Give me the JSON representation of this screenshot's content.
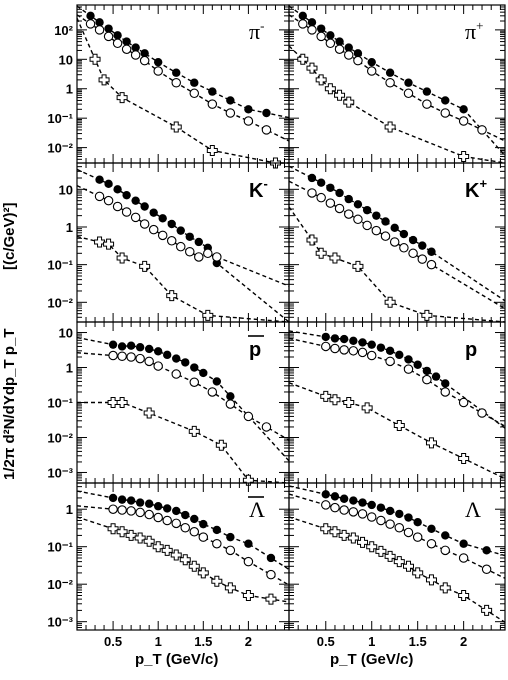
{
  "chart_data": {
    "type": "scatter",
    "xlabel": "p_T (GeV/c)",
    "ylabel_factor": "1/2π d²N/dYdp_T p_T",
    "ylabel_units": "[(c/GeV)²]",
    "xlim": [
      0.1,
      2.45
    ],
    "xticks": [
      "0.5",
      "1",
      "1.5",
      "2"
    ],
    "yscale": "log",
    "series_styles": [
      "filled circle",
      "open circle",
      "open cross"
    ],
    "panels": [
      {
        "particle": "π-",
        "label": "π",
        "sup": "-",
        "overline": false,
        "font": "serif",
        "ylim": [
          0.003,
          700
        ],
        "yticks": [
          "10²",
          "10",
          "1",
          "10⁻¹",
          "10⁻²"
        ],
        "series": [
          {
            "marker": "filled",
            "x": [
              0.25,
              0.35,
              0.45,
              0.55,
              0.65,
              0.75,
              0.85,
              1.0,
              1.2,
              1.4,
              1.6,
              1.8,
              2.0,
              2.2
            ],
            "y": [
              300,
              180,
              110,
              65,
              40,
              25,
              16,
              8,
              3.5,
              1.6,
              0.8,
              0.4,
              0.2,
              0.15
            ]
          },
          {
            "marker": "open",
            "x": [
              0.25,
              0.35,
              0.45,
              0.55,
              0.65,
              0.75,
              0.85,
              1.0,
              1.2,
              1.4,
              1.6,
              1.8,
              2.0,
              2.2
            ],
            "y": [
              160,
              100,
              60,
              35,
              22,
              14,
              9,
              4,
              1.6,
              0.7,
              0.3,
              0.15,
              0.08,
              0.04
            ]
          },
          {
            "marker": "cross",
            "x": [
              0.3,
              0.4,
              0.6,
              1.2,
              1.6,
              2.3
            ],
            "y": [
              10,
              2,
              0.5,
              0.05,
              0.008,
              0.003
            ]
          }
        ]
      },
      {
        "particle": "π+",
        "label": "π",
        "sup": "+",
        "overline": false,
        "font": "serif",
        "ylim": [
          0.003,
          700
        ],
        "yticks": [],
        "series": [
          {
            "marker": "filled",
            "x": [
              0.25,
              0.35,
              0.45,
              0.55,
              0.65,
              0.75,
              0.85,
              1.0,
              1.2,
              1.4,
              1.6,
              1.8,
              2.0,
              2.2
            ],
            "y": [
              300,
              180,
              110,
              65,
              40,
              25,
              16,
              8,
              3.5,
              1.6,
              0.8,
              0.4,
              0.2,
              0.04
            ]
          },
          {
            "marker": "open",
            "x": [
              0.25,
              0.35,
              0.45,
              0.55,
              0.65,
              0.75,
              0.85,
              1.0,
              1.2,
              1.4,
              1.6,
              1.8,
              2.0,
              2.2
            ],
            "y": [
              160,
              100,
              60,
              35,
              22,
              14,
              9,
              4,
              1.6,
              0.7,
              0.3,
              0.15,
              0.08,
              0.04
            ]
          },
          {
            "marker": "cross",
            "x": [
              0.25,
              0.35,
              0.45,
              0.55,
              0.65,
              0.75,
              1.2,
              2.0
            ],
            "y": [
              10,
              5,
              2,
              1,
              0.6,
              0.35,
              0.05,
              0.005
            ]
          }
        ]
      },
      {
        "particle": "K-",
        "label": "K",
        "sup": "-",
        "overline": false,
        "font": "sans",
        "ylim": [
          0.003,
          50
        ],
        "yticks": [
          "10",
          "1",
          "10⁻¹",
          "10⁻²"
        ],
        "series": [
          {
            "marker": "filled",
            "x": [
              0.35,
              0.45,
              0.55,
              0.65,
              0.75,
              0.85,
              0.95,
              1.05,
              1.15,
              1.25,
              1.35,
              1.45,
              1.55,
              1.65
            ],
            "y": [
              18,
              14,
              10,
              7,
              5,
              3.5,
              2.4,
              1.7,
              1.2,
              0.8,
              0.55,
              0.4,
              0.28,
              0.11
            ]
          },
          {
            "marker": "open",
            "x": [
              0.35,
              0.45,
              0.55,
              0.65,
              0.75,
              0.85,
              0.95,
              1.05,
              1.15,
              1.25,
              1.35,
              1.45,
              1.55,
              1.65
            ],
            "y": [
              6.5,
              5,
              3.5,
              2.5,
              1.8,
              1.2,
              0.85,
              0.6,
              0.43,
              0.3,
              0.22,
              0.16,
              0.2,
              0.16
            ]
          },
          {
            "marker": "cross",
            "x": [
              0.35,
              0.45,
              0.6,
              0.85,
              1.15,
              1.55
            ],
            "y": [
              0.4,
              0.35,
              0.15,
              0.09,
              0.015,
              0.0045
            ]
          }
        ]
      },
      {
        "particle": "K+",
        "label": "K",
        "sup": "+",
        "overline": false,
        "font": "sans",
        "ylim": [
          0.003,
          50
        ],
        "yticks": [],
        "series": [
          {
            "marker": "filled",
            "x": [
              0.35,
              0.45,
              0.55,
              0.65,
              0.75,
              0.85,
              0.95,
              1.05,
              1.15,
              1.25,
              1.35,
              1.45,
              1.55,
              1.65
            ],
            "y": [
              20,
              15,
              11,
              8,
              5.5,
              4,
              2.8,
              2,
              1.4,
              0.95,
              0.65,
              0.45,
              0.32,
              0.22
            ]
          },
          {
            "marker": "open",
            "x": [
              0.35,
              0.45,
              0.55,
              0.65,
              0.75,
              0.85,
              0.95,
              1.05,
              1.15,
              1.25,
              1.35,
              1.45,
              1.55,
              1.65
            ],
            "y": [
              8,
              6,
              4.3,
              3.1,
              2.2,
              1.6,
              1.1,
              0.8,
              0.57,
              0.4,
              0.28,
              0.2,
              0.14,
              0.1
            ]
          },
          {
            "marker": "cross",
            "x": [
              0.35,
              0.45,
              0.6,
              0.85,
              1.2,
              1.6
            ],
            "y": [
              0.45,
              0.2,
              0.15,
              0.09,
              0.01,
              0.0045
            ]
          }
        ]
      },
      {
        "particle": "p̄",
        "label": "p",
        "sup": "",
        "overline": true,
        "font": "sans",
        "ylim": [
          0.0005,
          20
        ],
        "yticks": [
          "10",
          "1",
          "10⁻¹",
          "10⁻²",
          "10⁻³"
        ],
        "series": [
          {
            "marker": "filled",
            "x": [
              0.5,
              0.6,
              0.7,
              0.8,
              0.9,
              1.0,
              1.1,
              1.2,
              1.3,
              1.4,
              1.5,
              1.65,
              1.8
            ],
            "y": [
              4.5,
              4,
              4.2,
              3.8,
              3.4,
              2.9,
              2.3,
              1.8,
              1.4,
              1.0,
              0.7,
              0.4,
              0.15
            ]
          },
          {
            "marker": "open",
            "x": [
              0.5,
              0.6,
              0.7,
              0.8,
              0.9,
              1.0,
              1.2,
              1.4,
              1.6,
              1.8,
              2.0,
              2.2
            ],
            "y": [
              2.2,
              2.1,
              2.0,
              1.8,
              1.5,
              1.1,
              0.65,
              0.38,
              0.2,
              0.09,
              0.04,
              0.02
            ]
          },
          {
            "marker": "cross",
            "x": [
              0.5,
              0.6,
              0.9,
              1.4,
              1.7,
              2.0
            ],
            "y": [
              0.1,
              0.1,
              0.05,
              0.015,
              0.006,
              0.0006
            ]
          }
        ]
      },
      {
        "particle": "p",
        "label": "p",
        "sup": "",
        "overline": false,
        "font": "sans",
        "ylim": [
          0.0005,
          20
        ],
        "yticks": [],
        "series": [
          {
            "marker": "filled",
            "x": [
              0.5,
              0.6,
              0.7,
              0.8,
              0.9,
              1.0,
              1.1,
              1.2,
              1.3,
              1.4,
              1.5,
              1.6,
              1.7,
              1.8
            ],
            "y": [
              7.5,
              6.8,
              6.5,
              5.8,
              5.2,
              4.5,
              3.7,
              3,
              2.3,
              1.7,
              1.2,
              0.8,
              0.55,
              0.35
            ]
          },
          {
            "marker": "open",
            "x": [
              0.5,
              0.6,
              0.7,
              0.8,
              0.9,
              1.0,
              1.2,
              1.4,
              1.6,
              1.8,
              2.0,
              2.2
            ],
            "y": [
              4,
              3.5,
              3.2,
              3,
              2.7,
              2.2,
              1.5,
              0.9,
              0.45,
              0.2,
              0.1,
              0.05
            ]
          },
          {
            "marker": "cross",
            "x": [
              0.5,
              0.6,
              0.75,
              0.95,
              1.3,
              1.65,
              2.0
            ],
            "y": [
              0.15,
              0.12,
              0.1,
              0.07,
              0.022,
              0.007,
              0.0025
            ]
          }
        ]
      },
      {
        "particle": "Λ̄",
        "label": "Λ",
        "sup": "",
        "overline": true,
        "font": "serif",
        "ylim": [
          0.0006,
          5
        ],
        "yticks": [
          "1",
          "10⁻¹",
          "10⁻²",
          "10⁻³"
        ],
        "series": [
          {
            "marker": "filled",
            "x": [
              0.5,
              0.6,
              0.7,
              0.8,
              0.9,
              1.0,
              1.1,
              1.2,
              1.3,
              1.4,
              1.5,
              1.65,
              1.8,
              2.0,
              2.25
            ],
            "y": [
              2,
              1.8,
              1.7,
              1.5,
              1.4,
              1.2,
              1.05,
              0.9,
              0.7,
              0.55,
              0.4,
              0.28,
              0.18,
              0.12,
              0.05
            ]
          },
          {
            "marker": "open",
            "x": [
              0.5,
              0.6,
              0.7,
              0.8,
              0.9,
              1.0,
              1.1,
              1.2,
              1.3,
              1.4,
              1.5,
              1.65,
              1.8,
              2.0,
              2.25
            ],
            "y": [
              1,
              0.95,
              0.9,
              0.82,
              0.72,
              0.6,
              0.5,
              0.42,
              0.32,
              0.25,
              0.18,
              0.12,
              0.08,
              0.04,
              0.018
            ]
          },
          {
            "marker": "cross",
            "x": [
              0.5,
              0.6,
              0.7,
              0.8,
              0.9,
              1.0,
              1.1,
              1.2,
              1.3,
              1.4,
              1.5,
              1.65,
              1.8,
              2.0,
              2.25
            ],
            "y": [
              0.3,
              0.25,
              0.2,
              0.17,
              0.14,
              0.1,
              0.08,
              0.06,
              0.045,
              0.03,
              0.02,
              0.012,
              0.008,
              0.005,
              0.004
            ]
          }
        ]
      },
      {
        "particle": "Λ",
        "label": "Λ",
        "sup": "",
        "overline": false,
        "font": "serif",
        "ylim": [
          0.0006,
          5
        ],
        "yticks": [],
        "series": [
          {
            "marker": "filled",
            "x": [
              0.5,
              0.6,
              0.7,
              0.8,
              0.9,
              1.0,
              1.1,
              1.2,
              1.3,
              1.4,
              1.5,
              1.65,
              1.8,
              2.0,
              2.25
            ],
            "y": [
              2.5,
              2.2,
              1.9,
              1.7,
              1.5,
              1.3,
              1.1,
              0.9,
              0.75,
              0.6,
              0.45,
              0.3,
              0.2,
              0.12,
              0.08
            ]
          },
          {
            "marker": "open",
            "x": [
              0.5,
              0.6,
              0.7,
              0.8,
              0.9,
              1.0,
              1.1,
              1.2,
              1.3,
              1.4,
              1.5,
              1.65,
              1.8,
              2.0,
              2.25
            ],
            "y": [
              1.3,
              1.1,
              0.95,
              0.85,
              0.75,
              0.62,
              0.5,
              0.4,
              0.32,
              0.24,
              0.18,
              0.12,
              0.08,
              0.05,
              0.025
            ]
          },
          {
            "marker": "cross",
            "x": [
              0.5,
              0.6,
              0.7,
              0.8,
              0.9,
              1.0,
              1.1,
              1.2,
              1.3,
              1.4,
              1.5,
              1.65,
              1.8,
              2.0,
              2.25
            ],
            "y": [
              0.3,
              0.25,
              0.2,
              0.17,
              0.13,
              0.1,
              0.075,
              0.055,
              0.04,
              0.03,
              0.02,
              0.013,
              0.008,
              0.005,
              0.002
            ]
          }
        ]
      }
    ]
  }
}
